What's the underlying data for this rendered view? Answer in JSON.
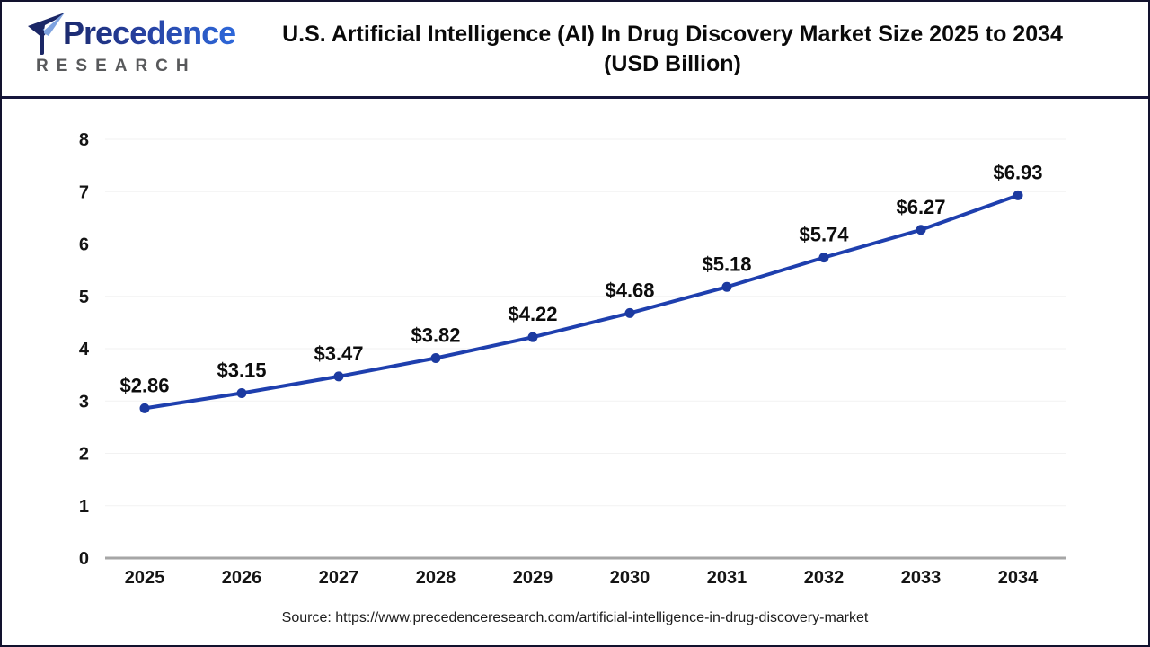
{
  "header": {
    "logo": {
      "brand": "Precedence",
      "subtitle": "RESEARCH"
    },
    "title_line1": "U.S. Artificial Intelligence (AI) In Drug Discovery Market Size 2025 to 2034",
    "title_line2": "(USD Billion)"
  },
  "chart_data": {
    "type": "line",
    "title": "U.S. Artificial Intelligence (AI) In Drug Discovery Market Size 2025 to 2034 (USD Billion)",
    "categories": [
      "2025",
      "2026",
      "2027",
      "2028",
      "2029",
      "2030",
      "2031",
      "2032",
      "2033",
      "2034"
    ],
    "values": [
      2.86,
      3.15,
      3.47,
      3.82,
      4.22,
      4.68,
      5.18,
      5.74,
      6.27,
      6.93
    ],
    "value_labels": [
      "$2.86",
      "$3.15",
      "$3.47",
      "$3.82",
      "$4.22",
      "$4.68",
      "$5.18",
      "$5.74",
      "$6.27",
      "$6.93"
    ],
    "xlabel": "",
    "ylabel": "",
    "ylim": [
      0,
      8
    ],
    "y_ticks": [
      0,
      1,
      2,
      3,
      4,
      5,
      6,
      7,
      8
    ],
    "grid": true,
    "legend": "none",
    "line_color": "#1e3fae",
    "marker_color": "#1c3aa0",
    "axis_line_color": "#a6a6a6",
    "gridline_color": "#f2f2f2"
  },
  "footer": {
    "source": "Source: https://www.precedenceresearch.com/artificial-intelligence-in-drug-discovery-market"
  }
}
